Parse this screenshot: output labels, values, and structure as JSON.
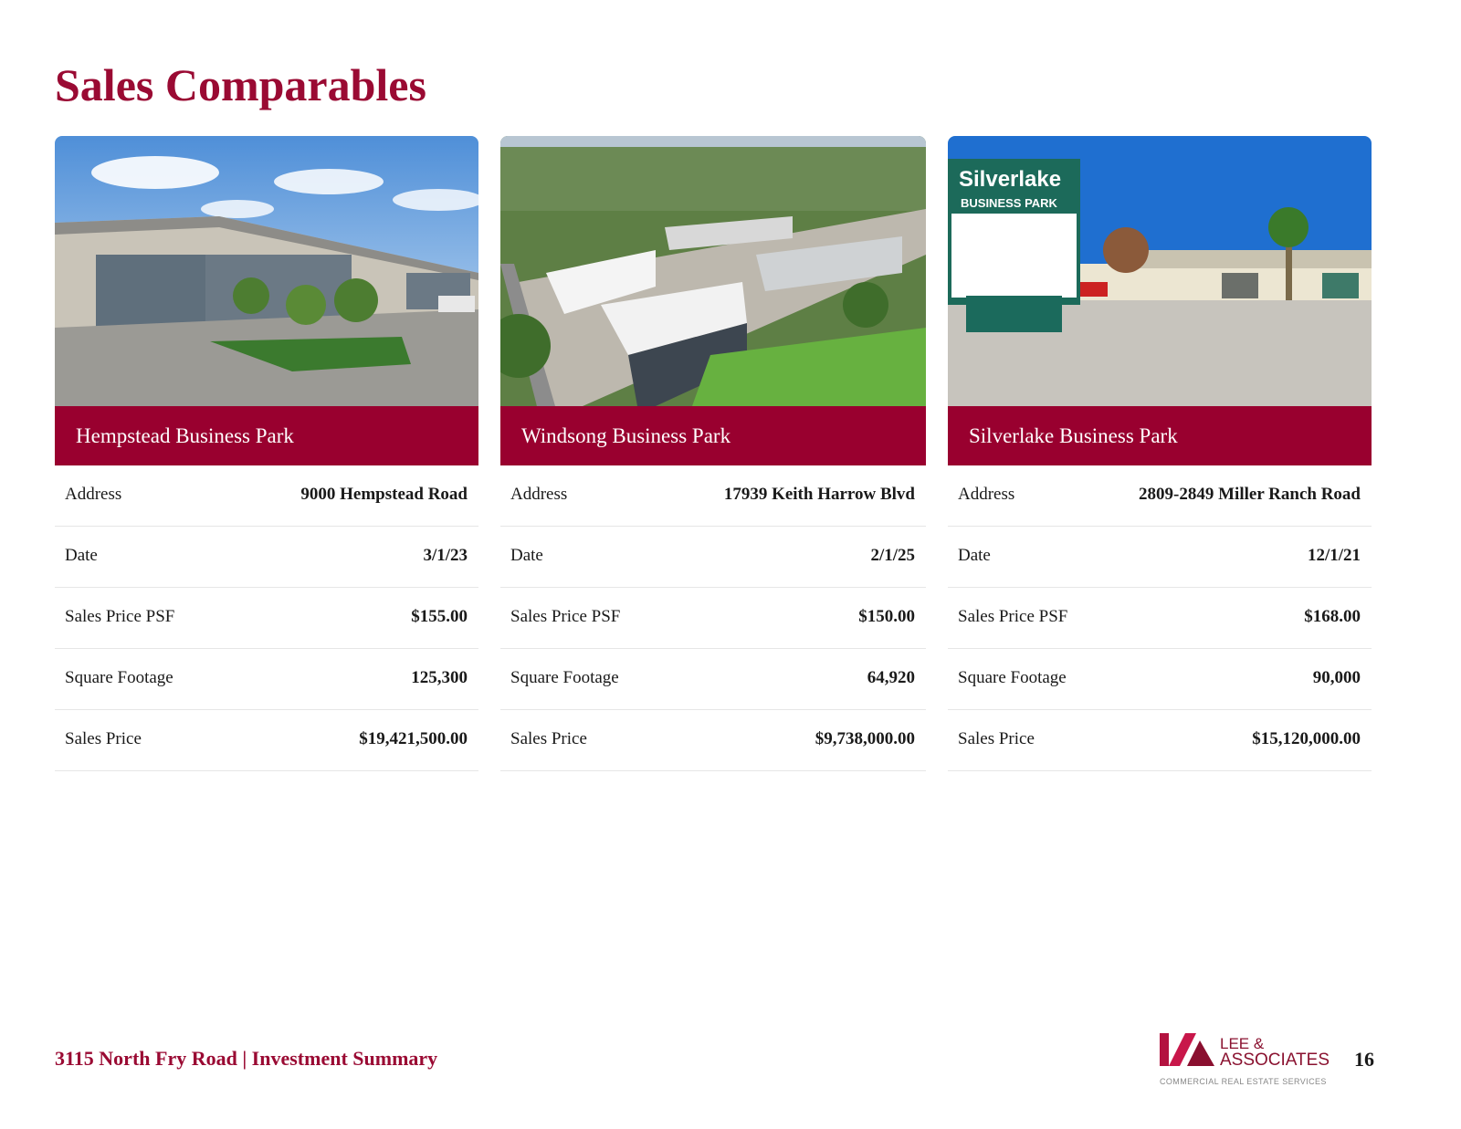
{
  "header": {
    "title": "Sales Comparables"
  },
  "comparables": [
    {
      "name": "Hempstead Business Park",
      "rows": [
        [
          "Address",
          "9000 Hempstead Road"
        ],
        [
          "Date",
          "3/1/23"
        ],
        [
          "Sales Price PSF",
          "$155.00"
        ],
        [
          "Square Footage",
          "125,300"
        ],
        [
          "Sales Price",
          "$19,421,500.00"
        ]
      ]
    },
    {
      "name": "Windsong Business Park",
      "rows": [
        [
          "Address",
          "17939 Keith Harrow Blvd"
        ],
        [
          "Date",
          "2/1/25"
        ],
        [
          "Sales Price PSF",
          "$150.00"
        ],
        [
          "Square Footage",
          "64,920"
        ],
        [
          "Sales Price",
          "$9,738,000.00"
        ]
      ]
    },
    {
      "name": "Silverlake Business Park",
      "rows": [
        [
          "Address",
          "2809-2849 Miller Ranch Road"
        ],
        [
          "Date",
          "12/1/21"
        ],
        [
          "Sales Price PSF",
          "$168.00"
        ],
        [
          "Square Footage",
          "90,000"
        ],
        [
          "Sales Price",
          "$15,120,000.00"
        ]
      ]
    }
  ],
  "footer": {
    "text": "3115 North Fry Road | Investment Summary",
    "logo": {
      "name": "LEE &",
      "name2": "ASSOCIATES",
      "tagline": "COMMERCIAL REAL ESTATE SERVICES"
    },
    "page": "16"
  }
}
